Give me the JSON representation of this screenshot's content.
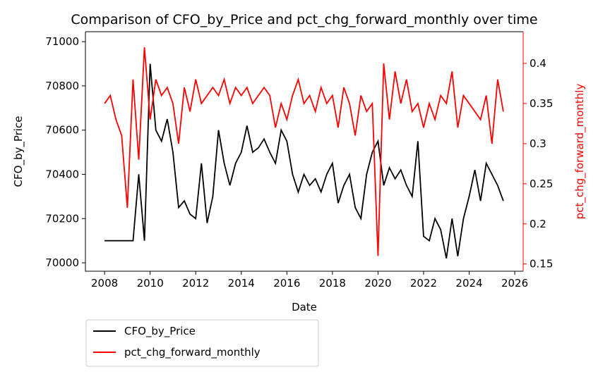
{
  "chart_data": {
    "type": "line",
    "title": "Comparison of CFO_by_Price and pct_chg_forward_monthly over time",
    "x_label": "Date",
    "y_label": "CFO_by_Price",
    "y2_label": "pct_chg_forward_monthly",
    "x": [
      2008,
      2008.25,
      2008.5,
      2008.75,
      2009,
      2009.25,
      2009.5,
      2009.75,
      2010,
      2010.25,
      2010.5,
      2010.75,
      2011,
      2011.25,
      2011.5,
      2011.75,
      2012,
      2012.25,
      2012.5,
      2012.75,
      2013,
      2013.25,
      2013.5,
      2013.75,
      2014,
      2014.25,
      2014.5,
      2014.75,
      2015,
      2015.25,
      2015.5,
      2015.75,
      2016,
      2016.25,
      2016.5,
      2016.75,
      2017,
      2017.25,
      2017.5,
      2017.75,
      2018,
      2018.25,
      2018.5,
      2018.75,
      2019,
      2019.25,
      2019.5,
      2019.75,
      2020,
      2020.25,
      2020.5,
      2020.75,
      2021,
      2021.25,
      2021.5,
      2021.75,
      2022,
      2022.25,
      2022.5,
      2022.75,
      2023,
      2023.25,
      2023.5,
      2023.75,
      2024,
      2024.25,
      2024.5,
      2024.75,
      2025,
      2025.25,
      2025.5
    ],
    "series": [
      {
        "name": "CFO_by_Price",
        "color": "#000000",
        "axis": "y",
        "values": [
          70100,
          70100,
          70100,
          70100,
          70100,
          70100,
          70400,
          70100,
          70900,
          70600,
          70550,
          70650,
          70500,
          70250,
          70280,
          70220,
          70200,
          70450,
          70180,
          70300,
          70600,
          70450,
          70350,
          70450,
          70500,
          70620,
          70500,
          70520,
          70560,
          70500,
          70450,
          70600,
          70550,
          70400,
          70320,
          70400,
          70350,
          70380,
          70320,
          70400,
          70450,
          70270,
          70350,
          70400,
          70250,
          70200,
          70400,
          70500,
          70550,
          70350,
          70430,
          70380,
          70420,
          70350,
          70300,
          70550,
          70120,
          70100,
          70200,
          70150,
          70020,
          70200,
          70030,
          70200,
          70300,
          70420,
          70280,
          70450,
          70400,
          70350,
          70280
        ]
      },
      {
        "name": "pct_chg_forward_monthly",
        "color": "#ff0000",
        "axis": "y2",
        "values": [
          0.35,
          0.36,
          0.33,
          0.31,
          0.22,
          0.38,
          0.28,
          0.42,
          0.33,
          0.38,
          0.36,
          0.37,
          0.35,
          0.3,
          0.37,
          0.34,
          0.38,
          0.35,
          0.36,
          0.37,
          0.36,
          0.38,
          0.35,
          0.37,
          0.36,
          0.37,
          0.35,
          0.36,
          0.37,
          0.36,
          0.32,
          0.35,
          0.33,
          0.36,
          0.38,
          0.35,
          0.36,
          0.34,
          0.37,
          0.35,
          0.36,
          0.32,
          0.37,
          0.35,
          0.31,
          0.36,
          0.34,
          0.35,
          0.16,
          0.4,
          0.33,
          0.39,
          0.35,
          0.38,
          0.34,
          0.35,
          0.32,
          0.35,
          0.33,
          0.36,
          0.35,
          0.39,
          0.32,
          0.36,
          0.35,
          0.34,
          0.33,
          0.36,
          0.3,
          0.38,
          0.34
        ]
      }
    ],
    "xlim": [
      2007.16,
      2026.37
    ],
    "xticks": [
      2008,
      2010,
      2012,
      2014,
      2016,
      2018,
      2020,
      2022,
      2024,
      2026
    ],
    "ylim": [
      69962,
      71045
    ],
    "yticks": [
      70000,
      70200,
      70400,
      70600,
      70800,
      71000
    ],
    "y2lim": [
      0.141,
      0.4395
    ],
    "y2ticks": [
      0.15,
      0.2,
      0.25,
      0.3,
      0.35,
      0.4
    ],
    "legend": "below"
  }
}
